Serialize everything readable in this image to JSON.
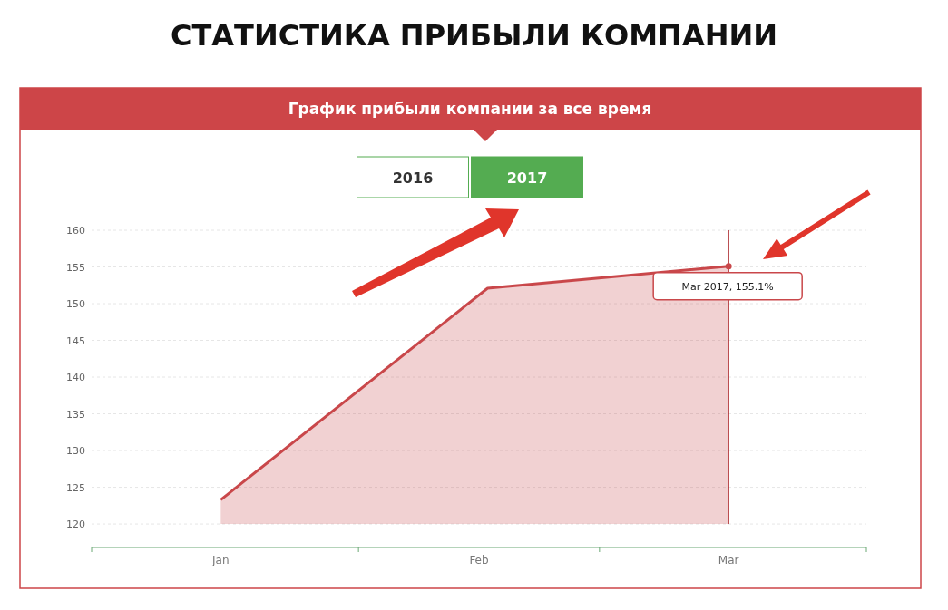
{
  "chart_data": {
    "type": "area",
    "title": "СТАТИСТИКА ПРИБЫЛИ КОМПАНИИ",
    "subtitle": "График прибыли компании за все время",
    "x": [
      "2017-01-16",
      "2017-02-16",
      "2017-03-16"
    ],
    "series": [
      {
        "color": "#c9474a",
        "values": [
          123.3,
          152.1,
          155.1
        ]
      }
    ],
    "xlim": [
      "2017-01-01",
      "2017-04-01"
    ],
    "xticks": [
      {
        "value": "2017-01-01",
        "label": null
      },
      {
        "value": "2017-01-16",
        "label": "Jan"
      },
      {
        "value": "2017-02-01",
        "label": null
      },
      {
        "value": "2017-02-15",
        "label": "Feb"
      },
      {
        "value": "2017-03-01",
        "label": null
      },
      {
        "value": "2017-03-16",
        "label": "Mar"
      },
      {
        "value": "2017-04-01",
        "label": null
      }
    ],
    "ylim": [
      116.8,
      160
    ],
    "yticks": [
      120,
      125,
      130,
      135,
      140,
      145,
      150,
      155,
      160
    ],
    "grid": "y",
    "marker": "none",
    "ref_lines": [
      {
        "axis": "x",
        "value": "2017-03-16",
        "label": null,
        "color": "#a81e22"
      }
    ],
    "annotations": [
      {
        "text": "Mar 2017, 155.1%",
        "x": "2017-03-16",
        "y": 155.1
      },
      "2016",
      "2017"
    ]
  }
}
